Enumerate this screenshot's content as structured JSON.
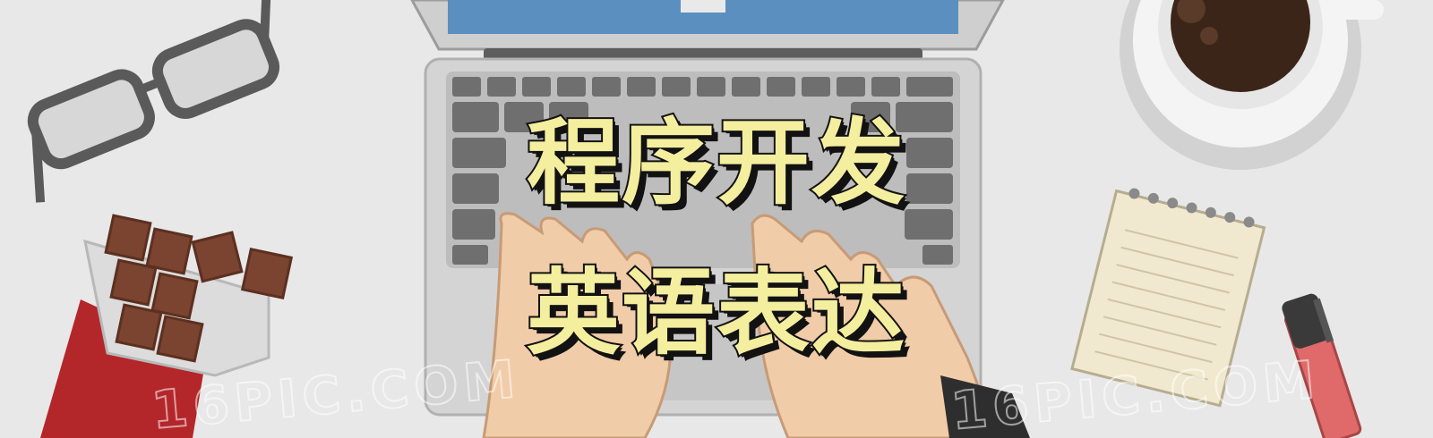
{
  "banner": {
    "title_line1": "程序开发",
    "title_line2": "英语表达",
    "watermark": "16PIC.COM"
  },
  "colors": {
    "background": "#e8e8e8",
    "title_fill": "#f4ee9f",
    "title_outline": "#121212",
    "laptop_body": "#c9c9c9",
    "keyboard_keys": "#6f6f6f",
    "screen": "#5b8fbf",
    "coffee": "#3b2518",
    "chocolate": "#7a4430",
    "wrapper_red": "#b3262a",
    "notepad": "#f1e9cf",
    "pen": "#e06a6a"
  },
  "icons": [
    "glasses-icon",
    "laptop-icon",
    "coffee-cup-icon",
    "chocolate-bar-icon",
    "notepad-icon",
    "pen-icon",
    "hands-icon"
  ]
}
